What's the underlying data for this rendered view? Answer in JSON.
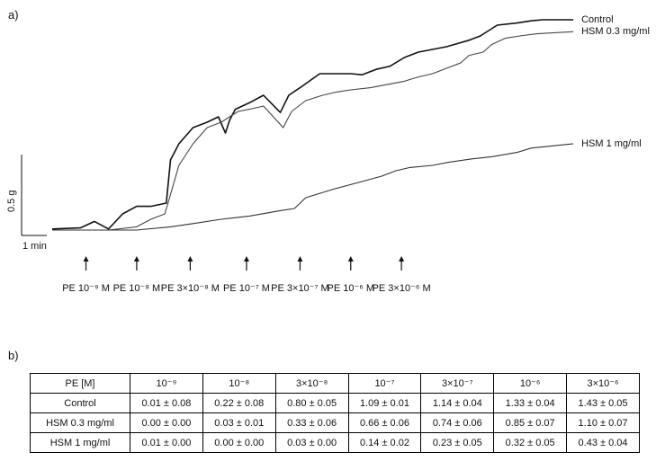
{
  "panel_a_label": "a)",
  "panel_b_label": "b)",
  "chart_data": {
    "type": "line",
    "title": "",
    "xlabel": "",
    "ylabel": "",
    "scale_bar_y_label": "0.5 g",
    "scale_bar_x_label": "1 min",
    "grid": false,
    "legend": "labels at right end of each trace",
    "x_unit": "min",
    "y_unit": "g",
    "series": [
      {
        "name": "Control",
        "color": "#111111",
        "x": [
          0,
          1,
          1.5,
          2,
          2.5,
          3,
          3.5,
          4.05,
          4.2,
          4.5,
          5,
          5.5,
          5.9,
          6.15,
          6.3,
          6.5,
          7,
          7.5,
          8.1,
          8.4,
          8.8,
          9.5,
          10.1,
          10.6,
          11,
          11.5,
          12,
          12.5,
          13,
          14,
          14.8,
          15.2,
          15.8,
          16.5,
          17,
          17.4,
          18.5
        ],
        "y": [
          0.01,
          0.02,
          0.08,
          0.01,
          0.15,
          0.22,
          0.22,
          0.25,
          0.65,
          0.8,
          0.95,
          1.0,
          1.05,
          0.9,
          1.02,
          1.12,
          1.18,
          1.25,
          1.09,
          1.25,
          1.32,
          1.45,
          1.45,
          1.45,
          1.44,
          1.49,
          1.52,
          1.6,
          1.65,
          1.7,
          1.76,
          1.8,
          1.9,
          1.92,
          1.94,
          1.95,
          1.95
        ]
      },
      {
        "name": "HSM 0.3 mg/ml",
        "color": "#444444",
        "x": [
          0,
          2,
          3,
          3.5,
          4.0,
          4.2,
          4.5,
          5,
          5.5,
          6,
          6.3,
          6.6,
          7,
          7.5,
          8.2,
          8.5,
          9,
          9.6,
          10.1,
          10.6,
          11.3,
          12.1,
          12.5,
          13,
          13.5,
          14,
          14.5,
          14.8,
          15.3,
          15.6,
          16.1,
          16.6,
          17.2,
          18.5
        ],
        "y": [
          0.0,
          0.0,
          0.03,
          0.1,
          0.15,
          0.33,
          0.6,
          0.8,
          0.95,
          1.0,
          1.05,
          1.1,
          1.12,
          1.15,
          0.95,
          1.1,
          1.2,
          1.25,
          1.28,
          1.3,
          1.32,
          1.36,
          1.38,
          1.42,
          1.45,
          1.5,
          1.55,
          1.62,
          1.65,
          1.72,
          1.78,
          1.8,
          1.82,
          1.84
        ]
      },
      {
        "name": "HSM 1 mg/ml",
        "color": "#333333",
        "x": [
          0,
          2,
          3,
          4.2,
          5,
          6,
          7,
          8.1,
          8.6,
          9,
          10,
          11,
          11.7,
          12.2,
          12.7,
          13.5,
          14.1,
          14.9,
          15.6,
          16.5,
          17,
          18.5
        ],
        "y": [
          0.0,
          0.0,
          0.0,
          0.03,
          0.06,
          0.1,
          0.13,
          0.18,
          0.2,
          0.3,
          0.38,
          0.45,
          0.5,
          0.55,
          0.58,
          0.6,
          0.63,
          0.66,
          0.68,
          0.72,
          0.76,
          0.8
        ]
      }
    ],
    "arrows": [
      {
        "label": "PE 10⁻⁹ M",
        "x": 1.2
      },
      {
        "label": "PE 10⁻⁸ M",
        "x": 3.0
      },
      {
        "label": "PE 3×10⁻⁸ M",
        "x": 4.9
      },
      {
        "label": "PE 10⁻⁷ M",
        "x": 6.9
      },
      {
        "label": "PE 3×10⁻⁷ M",
        "x": 8.8
      },
      {
        "label": "PE 10⁻⁶ M",
        "x": 10.6
      },
      {
        "label": "PE 3×10⁻⁶ M",
        "x": 12.4
      }
    ]
  },
  "table": {
    "header": [
      "PE [M]",
      "10⁻⁹",
      "10⁻⁸",
      "3×10⁻⁸",
      "10⁻⁷",
      "3×10⁻⁷",
      "10⁻⁶",
      "3×10⁻⁶"
    ],
    "rows": [
      [
        "Control",
        "0.01 ± 0.08",
        "0.22 ± 0.08",
        "0.80 ± 0.05",
        "1.09 ± 0.01",
        "1.14 ± 0.04",
        "1.33 ± 0.04",
        "1.43 ± 0.05"
      ],
      [
        "HSM 0.3 mg/ml",
        "0.00 ± 0.00",
        "0.03 ± 0.01",
        "0.33 ± 0.06",
        "0.66 ± 0.06",
        "0.74 ± 0.06",
        "0.85 ± 0.07",
        "1.10 ± 0.07"
      ],
      [
        "HSM 1 mg/ml",
        "0.01 ± 0.00",
        "0.00 ± 0.00",
        "0.03 ± 0.00",
        "0.14 ± 0.02",
        "0.23 ± 0.05",
        "0.32 ± 0.05",
        "0.43 ± 0.04"
      ]
    ]
  }
}
